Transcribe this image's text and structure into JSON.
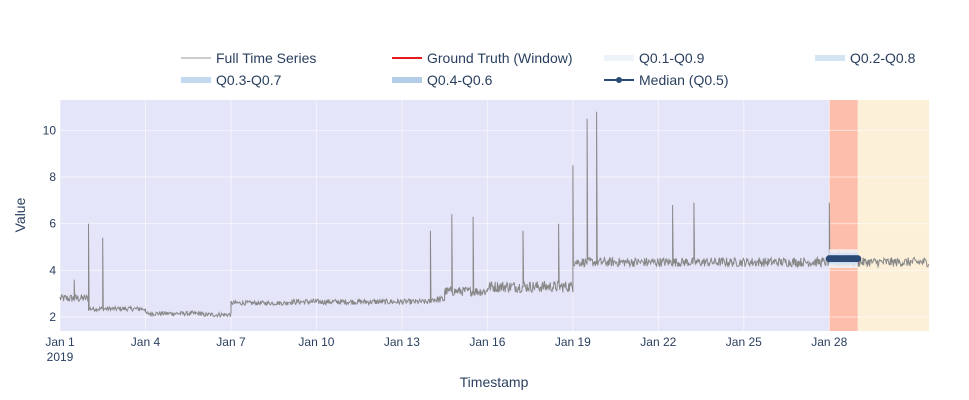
{
  "chart_data": {
    "type": "line",
    "title": "",
    "xlabel": "Timestamp",
    "ylabel": "Value",
    "x_range": [
      "2019-01-01",
      "2019-01-31T12:00"
    ],
    "ylim": [
      1.4,
      11.3
    ],
    "x_ticks": [
      {
        "date": "2019-01-01",
        "label": "Jan 1",
        "sublabel": "2019"
      },
      {
        "date": "2019-01-04",
        "label": "Jan 4"
      },
      {
        "date": "2019-01-07",
        "label": "Jan 7"
      },
      {
        "date": "2019-01-10",
        "label": "Jan 10"
      },
      {
        "date": "2019-01-13",
        "label": "Jan 13"
      },
      {
        "date": "2019-01-16",
        "label": "Jan 16"
      },
      {
        "date": "2019-01-19",
        "label": "Jan 19"
      },
      {
        "date": "2019-01-22",
        "label": "Jan 22"
      },
      {
        "date": "2019-01-25",
        "label": "Jan 25"
      },
      {
        "date": "2019-01-28",
        "label": "Jan 28"
      }
    ],
    "y_ticks": [
      2,
      4,
      6,
      8,
      10
    ],
    "grid": true,
    "legend_position": "top",
    "background_color": "#e5e5fa",
    "shaded_regions": [
      {
        "start": "2019-01-28",
        "end": "2019-01-29",
        "color": "#fdbfab"
      },
      {
        "start": "2019-01-29",
        "end": "2019-01-31T12:00",
        "color": "#fdf0d9"
      }
    ],
    "series": [
      {
        "name": "Full Time Series",
        "color": "#888888",
        "segments": [
          {
            "start": "2019-01-01",
            "end": "2019-01-02",
            "level": 2.8,
            "noise": 0.18
          },
          {
            "start": "2019-01-02",
            "end": "2019-01-04",
            "level": 2.35,
            "noise": 0.1
          },
          {
            "start": "2019-01-04",
            "end": "2019-01-06",
            "level": 2.15,
            "noise": 0.1
          },
          {
            "start": "2019-01-06",
            "end": "2019-01-07",
            "level": 2.1,
            "noise": 0.1
          },
          {
            "start": "2019-01-07",
            "end": "2019-01-09",
            "level": 2.6,
            "noise": 0.1
          },
          {
            "start": "2019-01-09",
            "end": "2019-01-14",
            "level": 2.65,
            "noise": 0.12
          },
          {
            "start": "2019-01-14",
            "end": "2019-01-14T12:00",
            "level": 2.75,
            "noise": 0.15
          },
          {
            "start": "2019-01-14T12:00",
            "end": "2019-01-16",
            "level": 3.1,
            "noise": 0.2
          },
          {
            "start": "2019-01-16",
            "end": "2019-01-19",
            "level": 3.3,
            "noise": 0.25
          },
          {
            "start": "2019-01-19",
            "end": "2019-01-31T12:00",
            "level": 4.35,
            "noise": 0.2
          }
        ],
        "spikes": [
          {
            "date": "2019-01-01T12:00",
            "value": 3.6
          },
          {
            "date": "2019-01-02T00:00",
            "value": 6.0
          },
          {
            "date": "2019-01-02T12:00",
            "value": 5.4
          },
          {
            "date": "2019-01-14T00:00",
            "value": 5.7
          },
          {
            "date": "2019-01-14T18:00",
            "value": 6.4
          },
          {
            "date": "2019-01-15T12:00",
            "value": 6.3
          },
          {
            "date": "2019-01-17T06:00",
            "value": 5.7
          },
          {
            "date": "2019-01-18T12:00",
            "value": 6.0
          },
          {
            "date": "2019-01-19T00:00",
            "value": 8.5
          },
          {
            "date": "2019-01-19T12:00",
            "value": 10.5
          },
          {
            "date": "2019-01-19T20:00",
            "value": 10.8
          },
          {
            "date": "2019-01-22T12:00",
            "value": 6.8
          },
          {
            "date": "2019-01-23T06:00",
            "value": 6.9
          },
          {
            "date": "2019-01-28T00:00",
            "value": 6.9
          }
        ]
      },
      {
        "name": "Ground Truth (Window)",
        "color": "#e41a1c",
        "start": "2019-01-28",
        "end": "2019-01-29",
        "level": 4.5,
        "noise": 0.3
      },
      {
        "name": "Q0.1-Q0.9",
        "color": "#eef3f9",
        "band": [
          4.1,
          4.9
        ]
      },
      {
        "name": "Q0.2-Q0.8",
        "color": "#d4e4f2",
        "band": [
          4.25,
          4.75
        ]
      },
      {
        "name": "Q0.3-Q0.7",
        "color": "#c3d9ee",
        "band": [
          4.35,
          4.65
        ]
      },
      {
        "name": "Q0.4-Q0.6",
        "color": "#b3cde6",
        "band": [
          4.43,
          4.57
        ]
      },
      {
        "name": "Median (Q0.5)",
        "color": "#2b4a75",
        "start": "2019-01-28",
        "end": "2019-01-29",
        "level": 4.5
      }
    ]
  }
}
